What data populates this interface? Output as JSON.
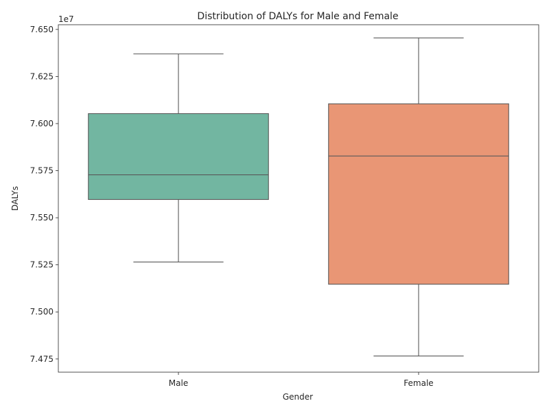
{
  "chart_data": {
    "type": "box",
    "title": "Distribution of DALYs for Male and Female",
    "xlabel": "Gender",
    "ylabel": "DALYs",
    "offset_text": "1e7",
    "ylim": [
      7.468,
      7.6525
    ],
    "yticks": [
      7.475,
      7.5,
      7.525,
      7.55,
      7.575,
      7.6,
      7.625,
      7.65
    ],
    "ytick_labels": [
      "7.475",
      "7.500",
      "7.525",
      "7.550",
      "7.575",
      "7.600",
      "7.625",
      "7.650"
    ],
    "categories": [
      "Male",
      "Female"
    ],
    "boxes": [
      {
        "name": "Male",
        "color": "#72b6a1",
        "whisker_low": 7.5265,
        "q1": 7.5597,
        "median": 7.5728,
        "q3": 7.6053,
        "whisker_high": 7.637
      },
      {
        "name": "Female",
        "color": "#e99675",
        "whisker_low": 7.4766,
        "q1": 7.5147,
        "median": 7.5828,
        "q3": 7.6105,
        "whisker_high": 7.6455
      }
    ],
    "grid": false,
    "legend": "none"
  }
}
